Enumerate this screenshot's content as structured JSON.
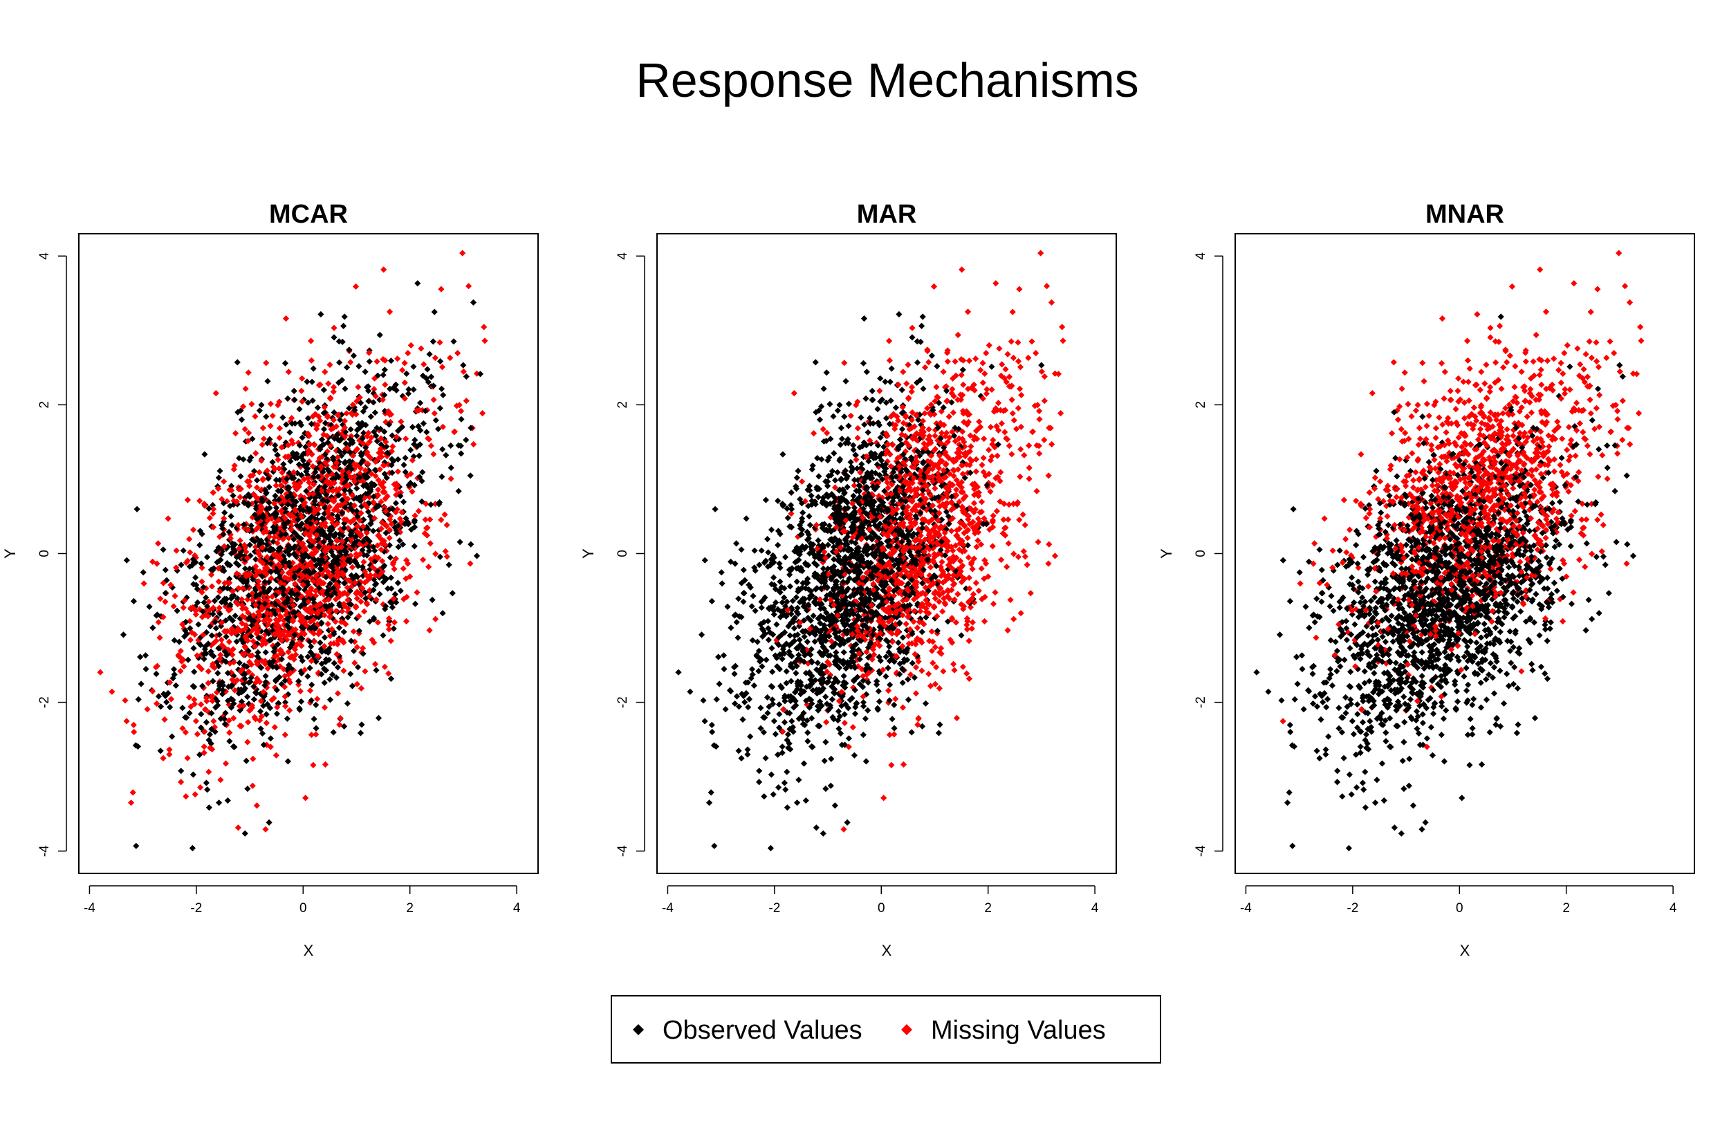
{
  "figure": {
    "title": "Response Mechanisms"
  },
  "legend": {
    "placement": "bottom-center",
    "entries": [
      {
        "label": "Observed Values",
        "color": "#000000",
        "marker": "diamond-icon"
      },
      {
        "label": "Missing Values",
        "color": "#ff0000",
        "marker": "diamond-icon"
      }
    ]
  },
  "chart_data": [
    {
      "type": "scatter",
      "title": "MCAR",
      "xlabel": "X",
      "ylabel": "Y",
      "xlim": [
        -4.2,
        4.4
      ],
      "ylim": [
        -4.3,
        4.3
      ],
      "xticks": [
        -4,
        -2,
        0,
        2,
        4
      ],
      "yticks": [
        -4,
        -2,
        0,
        2,
        4
      ],
      "grid": false,
      "mechanism": "random",
      "distribution": {
        "mean": [
          0,
          0
        ],
        "sd": [
          1.2,
          1.2
        ],
        "corr": 0.5,
        "n": 3200
      },
      "series": [
        {
          "name": "Observed Values",
          "color": "#000000"
        },
        {
          "name": "Missing Values",
          "color": "#ff0000"
        }
      ]
    },
    {
      "type": "scatter",
      "title": "MAR",
      "xlabel": "X",
      "ylabel": "Y",
      "xlim": [
        -4.2,
        4.4
      ],
      "ylim": [
        -4.3,
        4.3
      ],
      "xticks": [
        -4,
        -2,
        0,
        2,
        4
      ],
      "yticks": [
        -4,
        -2,
        0,
        2,
        4
      ],
      "grid": false,
      "mechanism": "depends-on-X",
      "distribution": {
        "mean": [
          0,
          0
        ],
        "sd": [
          1.2,
          1.2
        ],
        "corr": 0.5,
        "n": 3200
      },
      "series": [
        {
          "name": "Observed Values",
          "color": "#000000"
        },
        {
          "name": "Missing Values",
          "color": "#ff0000"
        }
      ]
    },
    {
      "type": "scatter",
      "title": "MNAR",
      "xlabel": "X",
      "ylabel": "Y",
      "xlim": [
        -4.2,
        4.4
      ],
      "ylim": [
        -4.3,
        4.3
      ],
      "xticks": [
        -4,
        -2,
        0,
        2,
        4
      ],
      "yticks": [
        -4,
        -2,
        0,
        2,
        4
      ],
      "grid": false,
      "mechanism": "depends-on-Y",
      "distribution": {
        "mean": [
          0,
          0
        ],
        "sd": [
          1.2,
          1.2
        ],
        "corr": 0.5,
        "n": 3200
      },
      "series": [
        {
          "name": "Observed Values",
          "color": "#000000"
        },
        {
          "name": "Missing Values",
          "color": "#ff0000"
        }
      ]
    }
  ]
}
